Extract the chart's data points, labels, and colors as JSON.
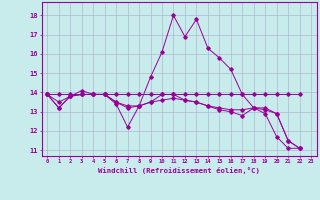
{
  "xlabel": "Windchill (Refroidissement éolien,°C)",
  "background_color": "#c8ecec",
  "grid_color": "#aaaacc",
  "line_color": "#990099",
  "xlim": [
    -0.5,
    23.5
  ],
  "ylim": [
    10.7,
    18.7
  ],
  "xticks": [
    0,
    1,
    2,
    3,
    4,
    5,
    6,
    7,
    8,
    9,
    10,
    11,
    12,
    13,
    14,
    15,
    16,
    17,
    18,
    19,
    20,
    21,
    22,
    23
  ],
  "yticks": [
    11,
    12,
    13,
    14,
    15,
    16,
    17,
    18
  ],
  "lines": [
    {
      "x": [
        0,
        1,
        2,
        3,
        4,
        5,
        6,
        7,
        8,
        9,
        10,
        11,
        12,
        13,
        14,
        15,
        16,
        17,
        18,
        19,
        20,
        21,
        22
      ],
      "y": [
        13.9,
        13.2,
        13.8,
        14.1,
        13.9,
        13.9,
        13.4,
        12.2,
        13.3,
        14.8,
        16.1,
        18.0,
        16.9,
        17.8,
        16.3,
        15.8,
        15.2,
        13.9,
        13.2,
        12.9,
        11.7,
        11.1,
        11.1
      ]
    },
    {
      "x": [
        0,
        1,
        2,
        3,
        4,
        5,
        6,
        7,
        8,
        9,
        10,
        11,
        12,
        13,
        14,
        15,
        16,
        17,
        18,
        19,
        20,
        21,
        22
      ],
      "y": [
        13.9,
        13.9,
        13.9,
        13.9,
        13.9,
        13.9,
        13.9,
        13.9,
        13.9,
        13.9,
        13.9,
        13.9,
        13.9,
        13.9,
        13.9,
        13.9,
        13.9,
        13.9,
        13.9,
        13.9,
        13.9,
        13.9,
        13.9
      ]
    },
    {
      "x": [
        0,
        1,
        2,
        3,
        4,
        5,
        6,
        7,
        8,
        9,
        10,
        11,
        12,
        13,
        14,
        15,
        16,
        17,
        18,
        19,
        20,
        21,
        22
      ],
      "y": [
        13.9,
        13.5,
        13.8,
        13.9,
        13.9,
        13.9,
        13.5,
        13.3,
        13.3,
        13.5,
        13.9,
        13.9,
        13.6,
        13.5,
        13.3,
        13.2,
        13.1,
        13.1,
        13.2,
        13.2,
        12.9,
        11.5,
        11.1
      ]
    },
    {
      "x": [
        0,
        1,
        2,
        3,
        4,
        5,
        6,
        7,
        8,
        9,
        10,
        11,
        12,
        13,
        14,
        15,
        16,
        17,
        18,
        19,
        20,
        21,
        22
      ],
      "y": [
        13.9,
        13.2,
        13.8,
        13.9,
        13.9,
        13.9,
        13.5,
        13.2,
        13.3,
        13.5,
        13.6,
        13.7,
        13.6,
        13.5,
        13.3,
        13.1,
        13.0,
        12.8,
        13.2,
        13.1,
        12.9,
        11.5,
        11.1
      ]
    }
  ]
}
